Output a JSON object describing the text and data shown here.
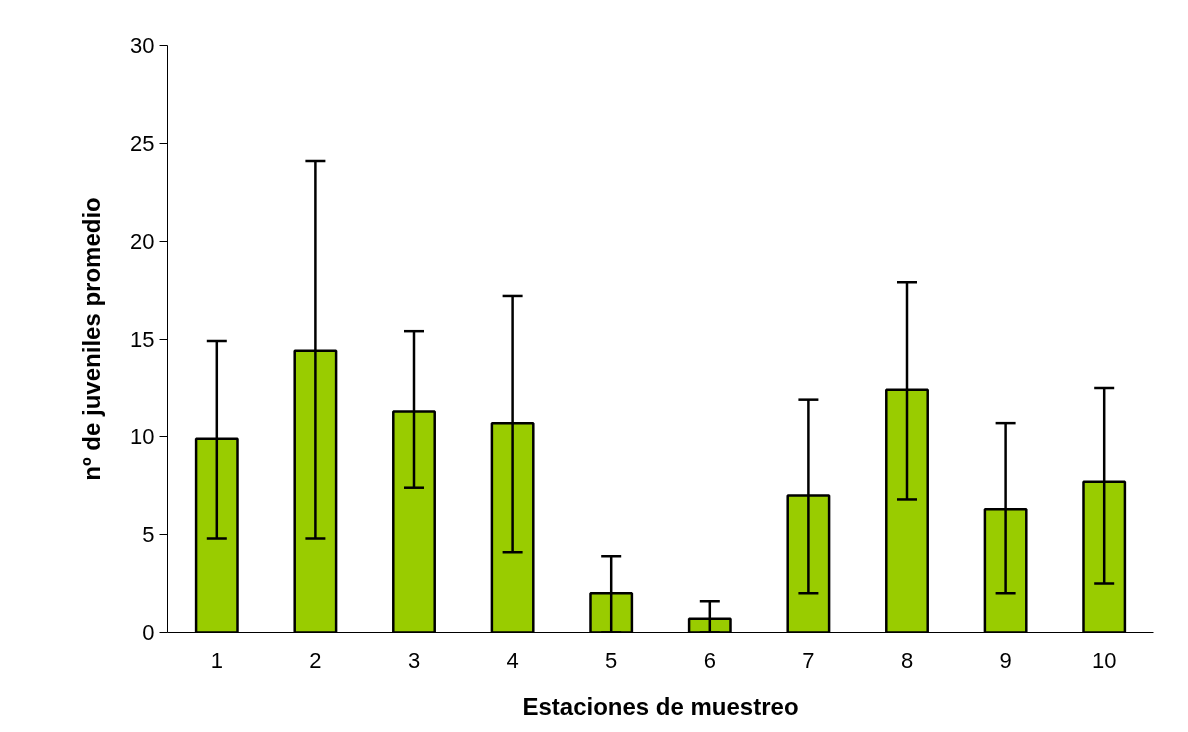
{
  "chart_data": {
    "type": "bar",
    "xlabel": "Estaciones de muestreo",
    "ylabel": "nº de juveniles promedio",
    "categories": [
      "1",
      "2",
      "3",
      "4",
      "5",
      "6",
      "7",
      "8",
      "9",
      "10"
    ],
    "values": [
      9.9,
      14.4,
      11.3,
      10.7,
      2.0,
      0.7,
      7.0,
      12.4,
      6.3,
      7.7
    ],
    "errors": [
      [
        4.8,
        14.9
      ],
      [
        4.8,
        24.1
      ],
      [
        7.4,
        15.4
      ],
      [
        4.1,
        17.2
      ],
      [
        0.0,
        3.9
      ],
      [
        0.0,
        1.6
      ],
      [
        2.0,
        11.9
      ],
      [
        6.8,
        17.9
      ],
      [
        2.0,
        10.7
      ],
      [
        2.5,
        12.5
      ]
    ],
    "color": "#99cc00",
    "ylim": [
      0,
      30
    ],
    "yticks": [
      0,
      5,
      10,
      15,
      20,
      25,
      30
    ],
    "grid": false
  }
}
